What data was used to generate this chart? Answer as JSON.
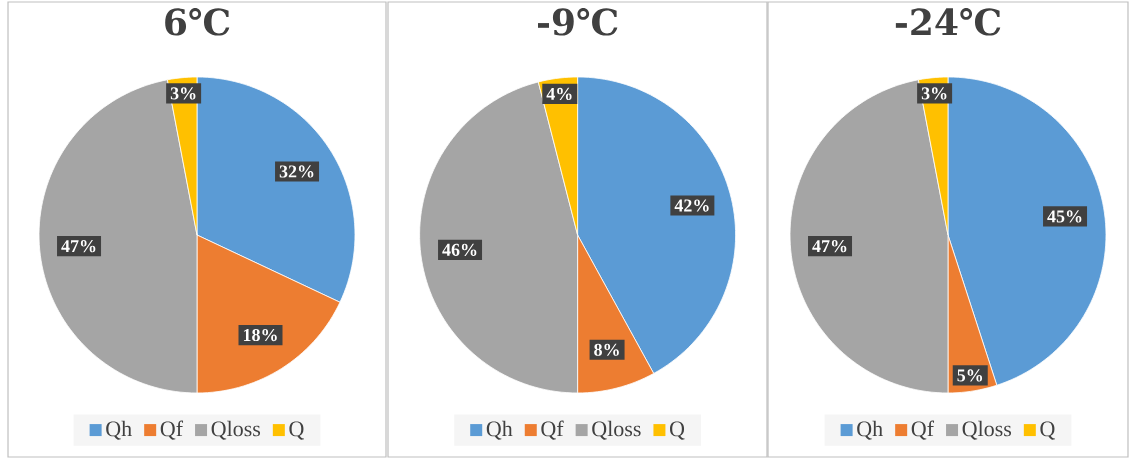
{
  "chart_data": [
    {
      "type": "pie",
      "title": "6℃",
      "categories": [
        "Qh",
        "Qf",
        "Qloss",
        "Q"
      ],
      "values": [
        32,
        18,
        47,
        3
      ],
      "value_labels": [
        "32%",
        "18%",
        "47%",
        "3%"
      ],
      "colors": [
        "#5b9bd5",
        "#ed7d31",
        "#a5a5a5",
        "#ffc000"
      ],
      "legend": "bottom"
    },
    {
      "type": "pie",
      "title": "-9℃",
      "categories": [
        "Qh",
        "Qf",
        "Qloss",
        "Q"
      ],
      "values": [
        42,
        8,
        46,
        4
      ],
      "value_labels": [
        "42%",
        "8%",
        "46%",
        "4%"
      ],
      "colors": [
        "#5b9bd5",
        "#ed7d31",
        "#a5a5a5",
        "#ffc000"
      ],
      "legend": "bottom"
    },
    {
      "type": "pie",
      "title": "-24℃",
      "categories": [
        "Qh",
        "Qf",
        "Qloss",
        "Q"
      ],
      "values": [
        45,
        5,
        47,
        3
      ],
      "value_labels": [
        "45%",
        "5%",
        "47%",
        "3%"
      ],
      "colors": [
        "#5b9bd5",
        "#ed7d31",
        "#a5a5a5",
        "#ffc000"
      ],
      "legend": "bottom"
    }
  ]
}
